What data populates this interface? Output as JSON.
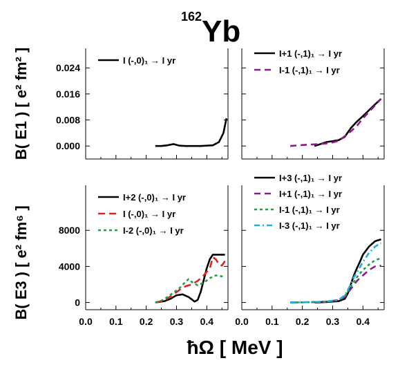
{
  "figure": {
    "title_mass": "162",
    "title_element": "Yb",
    "xlabel": "ħΩ  [ MeV ]",
    "ylabel_top": "B( E1 )  [ e² fm² ]",
    "ylabel_bottom": "B( E3 )  [ e² fm⁶ ]"
  },
  "chart_data": [
    {
      "type": "line",
      "panel": "top-left",
      "xlim": [
        0.0,
        0.47
      ],
      "ylim": [
        -0.004,
        0.03
      ],
      "xticks": [
        "0.0",
        "0.1",
        "0.2",
        "0.3",
        "0.4"
      ],
      "yticks": [
        "0.000",
        "0.008",
        "0.016",
        "0.024"
      ],
      "ytick_values": [
        0.0,
        0.008,
        0.016,
        0.024
      ],
      "show_xticklabels": false,
      "legend": "top",
      "series": [
        {
          "label": "I (-,0)₁ → I yr",
          "color": "#000000",
          "dash": "",
          "x": [
            0.23,
            0.25,
            0.27,
            0.29,
            0.31,
            0.33,
            0.36,
            0.38,
            0.4,
            0.42,
            0.44,
            0.455,
            0.465
          ],
          "y": [
            0.0,
            0.0,
            0.0002,
            0.0006,
            0.0001,
            0.0,
            0.0,
            0.0,
            0.0001,
            0.0002,
            0.0012,
            0.004,
            0.0085
          ]
        }
      ]
    },
    {
      "type": "line",
      "panel": "top-right",
      "xlim": [
        0.0,
        0.47
      ],
      "ylim": [
        -0.004,
        0.03
      ],
      "xticks": [
        "0.0",
        "0.1",
        "0.2",
        "0.3",
        "0.4"
      ],
      "yticks": [
        "0.000",
        "0.008",
        "0.016",
        "0.024"
      ],
      "ytick_values": [
        0.0,
        0.008,
        0.016,
        0.024
      ],
      "show_xticklabels": false,
      "show_yticklabels": false,
      "legend": "top",
      "series": [
        {
          "label": "I+1 (-,1)₁ →   I yr",
          "color": "#000000",
          "dash": "",
          "x": [
            0.24,
            0.26,
            0.28,
            0.3,
            0.32,
            0.34,
            0.36,
            0.38,
            0.4,
            0.42,
            0.44,
            0.46
          ],
          "y": [
            0.0,
            0.0006,
            0.0012,
            0.0015,
            0.0018,
            0.0028,
            0.0055,
            0.0075,
            0.0092,
            0.011,
            0.0128,
            0.0145
          ]
        },
        {
          "label": "I-1 (-,1)₁ →   I yr",
          "color": "#8b1a8b",
          "dash": "9,6",
          "x": [
            0.16,
            0.2,
            0.24,
            0.28,
            0.3,
            0.32,
            0.34,
            0.36,
            0.38,
            0.4,
            0.42,
            0.44,
            0.46
          ],
          "y": [
            0.0,
            0.0003,
            0.0005,
            0.0008,
            0.0011,
            0.0016,
            0.003,
            0.0045,
            0.0062,
            0.0085,
            0.0105,
            0.0125,
            0.0145
          ]
        }
      ]
    },
    {
      "type": "line",
      "panel": "bottom-left",
      "xlim": [
        0.0,
        0.47
      ],
      "ylim": [
        -800,
        13000
      ],
      "xticks": [
        "0.0",
        "0.1",
        "0.2",
        "0.3",
        "0.4"
      ],
      "xtick_values": [
        0.0,
        0.1,
        0.2,
        0.3,
        0.4
      ],
      "yticks": [
        "0",
        "4000",
        "8000"
      ],
      "ytick_values": [
        0,
        4000,
        8000
      ],
      "show_xticklabels": true,
      "legend": "top",
      "series": [
        {
          "label": "I+2  (-,0)₁ → I yr",
          "color": "#000000",
          "dash": "",
          "x": [
            0.23,
            0.26,
            0.28,
            0.3,
            0.32,
            0.34,
            0.36,
            0.37,
            0.38,
            0.39,
            0.4,
            0.41,
            0.42,
            0.44,
            0.46
          ],
          "y": [
            0,
            150,
            400,
            800,
            900,
            600,
            100,
            300,
            1200,
            2500,
            3800,
            4800,
            5300,
            5300,
            5300
          ]
        },
        {
          "label": "I (-,0)₁         → I yr",
          "color": "#e02020",
          "dash": "10,6",
          "x": [
            0.23,
            0.25,
            0.27,
            0.29,
            0.31,
            0.33,
            0.35,
            0.37,
            0.39,
            0.41,
            0.42,
            0.43,
            0.44,
            0.45,
            0.46
          ],
          "y": [
            0,
            150,
            450,
            900,
            1400,
            1800,
            2000,
            2400,
            3000,
            3800,
            5000,
            4800,
            4200,
            4100,
            4600
          ]
        },
        {
          "label": "I-2   (-,0)₁ → I yr",
          "color": "#22a040",
          "dash": "4,4",
          "x": [
            0.23,
            0.25,
            0.27,
            0.29,
            0.31,
            0.33,
            0.34,
            0.35,
            0.37,
            0.39,
            0.41,
            0.43,
            0.45,
            0.46
          ],
          "y": [
            0,
            200,
            600,
            1100,
            1600,
            2300,
            2600,
            2300,
            1900,
            2200,
            2700,
            3000,
            2900,
            2800
          ]
        }
      ]
    },
    {
      "type": "line",
      "panel": "bottom-right",
      "xlim": [
        0.0,
        0.47
      ],
      "ylim": [
        -800,
        13000
      ],
      "xticks": [
        "0.0",
        "0.1",
        "0.2",
        "0.3",
        "0.4"
      ],
      "xtick_values": [
        0.0,
        0.1,
        0.2,
        0.3,
        0.4
      ],
      "yticks": [
        "0",
        "4000",
        "8000"
      ],
      "ytick_values": [
        0,
        4000,
        8000
      ],
      "show_xticklabels": true,
      "show_yticklabels": false,
      "legend": "top",
      "series": [
        {
          "label": "I+3 (-,1)₁ →   I yr",
          "color": "#000000",
          "dash": "",
          "x": [
            0.24,
            0.28,
            0.32,
            0.34,
            0.35,
            0.36,
            0.37,
            0.38,
            0.39,
            0.4,
            0.42,
            0.44,
            0.46
          ],
          "y": [
            0,
            50,
            150,
            400,
            1000,
            2000,
            3000,
            3800,
            4500,
            5300,
            6200,
            6800,
            7000
          ]
        },
        {
          "label": "I+1 (-,1)₁ →   I yr",
          "color": "#8b1a8b",
          "dash": "9,6",
          "x": [
            0.16,
            0.2,
            0.24,
            0.28,
            0.32,
            0.34,
            0.36,
            0.38,
            0.4,
            0.42,
            0.44,
            0.46
          ],
          "y": [
            0,
            20,
            50,
            100,
            250,
            600,
            1500,
            2400,
            3000,
            3600,
            4000,
            4100
          ]
        },
        {
          "label": "I-1 (-,1)₁ →   I yr",
          "color": "#22a040",
          "dash": "4,4",
          "x": [
            0.16,
            0.2,
            0.24,
            0.28,
            0.32,
            0.34,
            0.36,
            0.38,
            0.4,
            0.42,
            0.44,
            0.46
          ],
          "y": [
            0,
            20,
            50,
            100,
            300,
            700,
            1800,
            2800,
            3600,
            4200,
            4700,
            4900
          ]
        },
        {
          "label": "I-3 (-,1)₁ →   I yr",
          "color": "#1ab0e0",
          "dash": "8,4,2,4",
          "x": [
            0.16,
            0.2,
            0.24,
            0.28,
            0.32,
            0.34,
            0.36,
            0.37,
            0.38,
            0.4,
            0.42,
            0.44,
            0.46
          ],
          "y": [
            0,
            20,
            50,
            100,
            300,
            800,
            2000,
            2800,
            3300,
            4500,
            5500,
            6200,
            6600
          ]
        }
      ]
    }
  ]
}
